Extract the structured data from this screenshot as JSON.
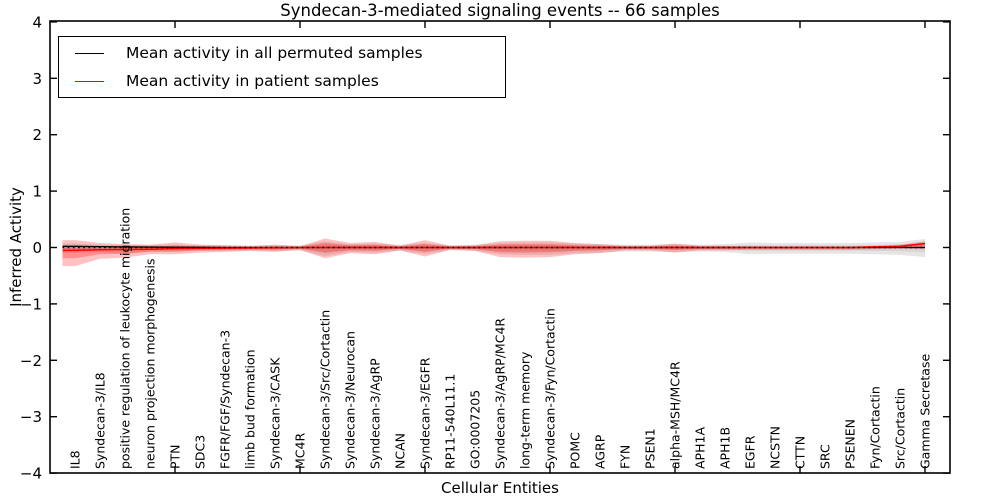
{
  "title": "Syndecan-3-mediated signaling events -- 66 samples",
  "legend": {
    "entries": [
      {
        "label": "Mean activity in all permuted samples",
        "color": "#000000"
      },
      {
        "label": "Mean activity in patient samples",
        "color": "#ff0000"
      }
    ]
  },
  "axes": {
    "ylabel": "Inferred Activity",
    "xlabel": "Cellular Entities",
    "ytick_labels": [
      "4",
      "3",
      "2",
      "1",
      "0",
      "−1",
      "−2",
      "−3",
      "−4"
    ],
    "ytick_values": [
      4,
      3,
      2,
      1,
      0,
      -1,
      -2,
      -3,
      -4
    ],
    "xtick_values": [
      5,
      10,
      15,
      20,
      25,
      30,
      35
    ],
    "ylim": [
      -4,
      4
    ],
    "xlim": [
      0,
      36
    ]
  },
  "chart_data": {
    "type": "line",
    "title": "Syndecan-3-mediated signaling events -- 66 samples",
    "xlabel": "Cellular Entities",
    "ylabel": "Inferred Activity",
    "ylim": [
      -4,
      4
    ],
    "legend_position": "upper left",
    "grid": false,
    "categories": [
      "IL8",
      "Syndecan-3/IL8",
      "positive regulation of leukocyte migration",
      "neuron projection morphogenesis",
      "PTN",
      "SDC3",
      "FGFR/FGF/Syndecan-3",
      "limb bud formation",
      "Syndecan-3/CASK",
      "MC4R",
      "Syndecan-3/Src/Cortactin",
      "Syndecan-3/Neurocan",
      "Syndecan-3/AgRP",
      "NCAN",
      "Syndecan-3/EGFR",
      "RP11-540L11.1",
      "GO:0007205",
      "Syndecan-3/AgRP/MC4R",
      "long-term memory",
      "Syndecan-3/Fyn/Cortactin",
      "POMC",
      "AGRP",
      "FYN",
      "PSEN1",
      "alpha-MSH/MC4R",
      "APH1A",
      "APH1B",
      "EGFR",
      "NCSTN",
      "CTTN",
      "SRC",
      "PSENEN",
      "Fyn/Cortactin",
      "Src/Cortactin",
      "Gamma Secretase"
    ],
    "series": [
      {
        "name": "Mean activity in all permuted samples",
        "color": "#000000",
        "values": [
          0.02,
          0.015,
          0.01,
          0.008,
          0.005,
          0.003,
          0,
          0,
          0,
          0,
          0,
          0,
          0,
          0,
          0,
          0,
          0,
          0,
          0,
          0,
          0,
          0,
          0,
          0,
          0,
          0,
          0,
          0,
          0,
          0,
          0,
          0,
          0,
          0,
          0
        ]
      },
      {
        "name": "Mean activity in patient samples",
        "color": "#ff0000",
        "values": [
          -0.05,
          -0.04,
          -0.035,
          -0.03,
          -0.02,
          -0.015,
          -0.01,
          -0.008,
          -0.005,
          0,
          0,
          0,
          0,
          0,
          0,
          0,
          0,
          0,
          0,
          0,
          0,
          0,
          0,
          0,
          0,
          0,
          0,
          0,
          0,
          0,
          0,
          0,
          0.01,
          0.02,
          0.07
        ]
      }
    ],
    "bands": {
      "permuted_range": {
        "color": "#bbbbbb",
        "upper": [
          0.07,
          0.05,
          0.05,
          0.04,
          0.05,
          0.04,
          0.04,
          0.03,
          0.04,
          0.04,
          0.11,
          0.06,
          0.07,
          0.05,
          0.08,
          0.04,
          0.05,
          0.08,
          0.09,
          0.09,
          0.07,
          0.06,
          0.05,
          0.05,
          0.06,
          0.05,
          0.06,
          0.09,
          0.08,
          0.08,
          0.08,
          0.08,
          0.09,
          0.1,
          0.15
        ],
        "lower": [
          -0.1,
          -0.08,
          -0.12,
          -0.07,
          -0.08,
          -0.06,
          -0.06,
          -0.05,
          -0.06,
          -0.06,
          -0.15,
          -0.08,
          -0.09,
          -0.06,
          -0.11,
          -0.05,
          -0.06,
          -0.12,
          -0.13,
          -0.13,
          -0.1,
          -0.09,
          -0.07,
          -0.07,
          -0.08,
          -0.07,
          -0.08,
          -0.12,
          -0.11,
          -0.11,
          -0.11,
          -0.11,
          -0.12,
          -0.13,
          -0.17
        ]
      },
      "patient_range": {
        "color": "#ff0000",
        "upper": [
          0.13,
          0.08,
          0.06,
          0.05,
          0.09,
          0.05,
          0.04,
          0.03,
          0.05,
          0.02,
          0.16,
          0.08,
          0.1,
          0.03,
          0.13,
          0.03,
          0.04,
          0.11,
          0.12,
          0.12,
          0.08,
          0.06,
          0.03,
          0.03,
          0.07,
          0.03,
          0.03,
          0.02,
          0.02,
          0.02,
          0.02,
          0.02,
          0.03,
          0.05,
          0.11
        ],
        "lower": [
          -0.33,
          -0.2,
          -0.18,
          -0.12,
          -0.12,
          -0.09,
          -0.08,
          -0.06,
          -0.08,
          -0.04,
          -0.19,
          -0.1,
          -0.12,
          -0.05,
          -0.16,
          -0.04,
          -0.06,
          -0.17,
          -0.18,
          -0.17,
          -0.12,
          -0.1,
          -0.05,
          -0.05,
          -0.09,
          -0.05,
          -0.05,
          -0.04,
          -0.04,
          -0.04,
          -0.04,
          -0.04,
          -0.03,
          -0.02,
          -0.03
        ]
      }
    },
    "zero_line": {
      "style": "dotted",
      "color": "#000000",
      "y": 0
    }
  }
}
